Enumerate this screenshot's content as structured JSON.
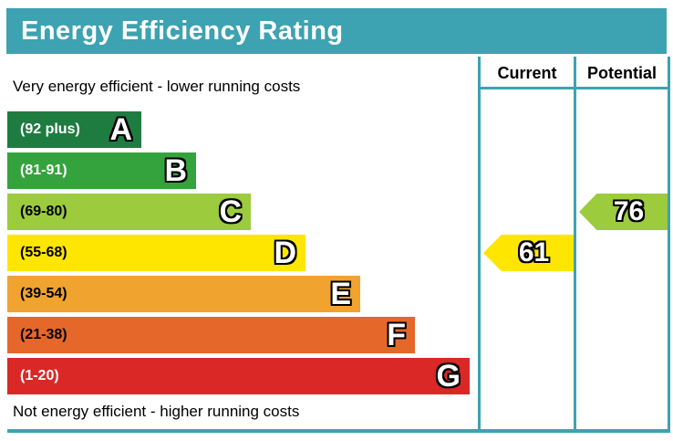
{
  "title": "Energy Efficiency Rating",
  "notes": {
    "top": "Very energy efficient - lower running costs",
    "bottom": "Not energy efficient - higher running costs"
  },
  "palette": {
    "header_teal": "#3DA2B1",
    "band_colors": {
      "A": "#1E7C41",
      "B": "#35A33D",
      "C": "#9CCB3D",
      "D": "#FFE600",
      "E": "#F0A32F",
      "F": "#E6672A",
      "G": "#DA2827"
    }
  },
  "bands": [
    {
      "letter": "A",
      "range_label": "(92 plus)",
      "text_color": "#FFFFFF"
    },
    {
      "letter": "B",
      "range_label": "(81-91)",
      "text_color": "#FFFFFF"
    },
    {
      "letter": "C",
      "range_label": "(69-80)",
      "text_color": "#000000"
    },
    {
      "letter": "D",
      "range_label": "(55-68)",
      "text_color": "#000000"
    },
    {
      "letter": "E",
      "range_label": "(39-54)",
      "text_color": "#000000"
    },
    {
      "letter": "F",
      "range_label": "(21-38)",
      "text_color": "#000000"
    },
    {
      "letter": "G",
      "range_label": "(1-20)",
      "text_color": "#FFFFFF"
    }
  ],
  "ratings": {
    "current": {
      "label": "Current",
      "value": "61",
      "band": "D"
    },
    "potential": {
      "label": "Potential",
      "value": "76",
      "band": "C"
    }
  },
  "chart_data": {
    "type": "bar",
    "title": "Energy Efficiency Rating",
    "categories": [
      "A",
      "B",
      "C",
      "D",
      "E",
      "F",
      "G"
    ],
    "band_ranges": [
      "92 plus",
      "81-91",
      "69-80",
      "55-68",
      "39-54",
      "21-38",
      "1-20"
    ],
    "band_colors": [
      "#1E7C41",
      "#35A33D",
      "#9CCB3D",
      "#FFE600",
      "#F0A32F",
      "#E6672A",
      "#DA2827"
    ],
    "series": [
      {
        "name": "Current",
        "value": 61,
        "band": "D"
      },
      {
        "name": "Potential",
        "value": 76,
        "band": "C"
      }
    ],
    "value_scale": [
      1,
      100
    ],
    "annotations": [
      "Very energy efficient - lower running costs",
      "Not energy efficient - higher running costs"
    ],
    "legend_position": "right-columns"
  }
}
